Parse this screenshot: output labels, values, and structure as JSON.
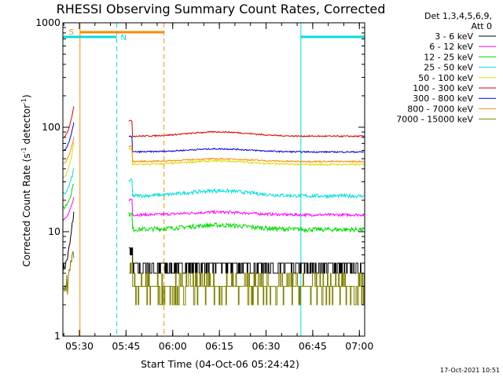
{
  "chart_data": {
    "type": "line",
    "title": "RHESSI Observing Summary Count Rates, Corrected",
    "xlabel": "Start Time (04-Oct-06 05:24:42)",
    "ylabel_main": "Corrected Count Rate (s",
    "ylabel_sup1": "-1",
    "ylabel_mid": " detector",
    "ylabel_sup2": "-1",
    "ylabel_end": ")",
    "yscale": "log",
    "ylim": [
      1,
      1000
    ],
    "xlim_minutes": [
      0,
      97
    ],
    "x_unit": "minutes after 05:24:42",
    "y_ticks": [
      "1",
      "10",
      "100",
      "1000"
    ],
    "x_ticks": [
      "05:30",
      "05:45",
      "06:00",
      "06:15",
      "06:30",
      "06:45",
      "07:00"
    ],
    "legend_header": [
      "Det 1,3,4,5,6,9,",
      "Att 0"
    ],
    "legend_position": "right",
    "series": [
      {
        "name": "3 - 6 keV",
        "color": "#000000",
        "pre": [
          4.5,
          16
        ],
        "base": 4.5,
        "bump": 0.06,
        "noise": 0.12,
        "step": true
      },
      {
        "name": "6 - 12 keV",
        "color": "#ff00ff",
        "pre": [
          13,
          21
        ],
        "base": 14.5,
        "bump": 0.06,
        "noise": 0.03
      },
      {
        "name": "12 - 25 keV",
        "color": "#00dd00",
        "pre": [
          17,
          30
        ],
        "base": 10.5,
        "bump": 0.1,
        "noise": 0.05
      },
      {
        "name": "25 - 50 keV",
        "color": "#00dddd",
        "pre": [
          23,
          40
        ],
        "base": 22,
        "bump": 0.12,
        "noise": 0.04
      },
      {
        "name": "50 - 100 keV",
        "color": "#dddd00",
        "pre": [
          33,
          70
        ],
        "base": 44,
        "bump": 0.08,
        "noise": 0.02
      },
      {
        "name": "100 - 300 keV",
        "color": "#dd0000",
        "pre": [
          80,
          160
        ],
        "base": 82,
        "bump": 0.1,
        "noise": 0.015
      },
      {
        "name": "300 - 800 keV",
        "color": "#0000dd",
        "pre": [
          60,
          110
        ],
        "base": 58,
        "bump": 0.07,
        "noise": 0.015
      },
      {
        "name": "800 - 7000 keV",
        "color": "#ff8800",
        "pre": [
          45,
          80
        ],
        "base": 47,
        "bump": 0.06,
        "noise": 0.015
      },
      {
        "name": "7000 - 15000 keV",
        "color": "#808000",
        "pre": [
          2.8,
          7
        ],
        "base": 3,
        "bump": 0,
        "noise": 0.25,
        "step": true
      }
    ],
    "annotations": {
      "saa_label": "S",
      "night_label": "N",
      "flag_colors": {
        "saa": "#ff8800",
        "night": "#00dddd"
      },
      "data_gap_minutes": [
        5,
        21
      ],
      "night_intervals_minutes": [
        [
          0,
          17.3
        ],
        [
          76.5,
          97
        ]
      ],
      "saa_interval_minutes": [
        5.5,
        32.5
      ]
    },
    "footer_date": "17-Oct-2021 10:51"
  }
}
